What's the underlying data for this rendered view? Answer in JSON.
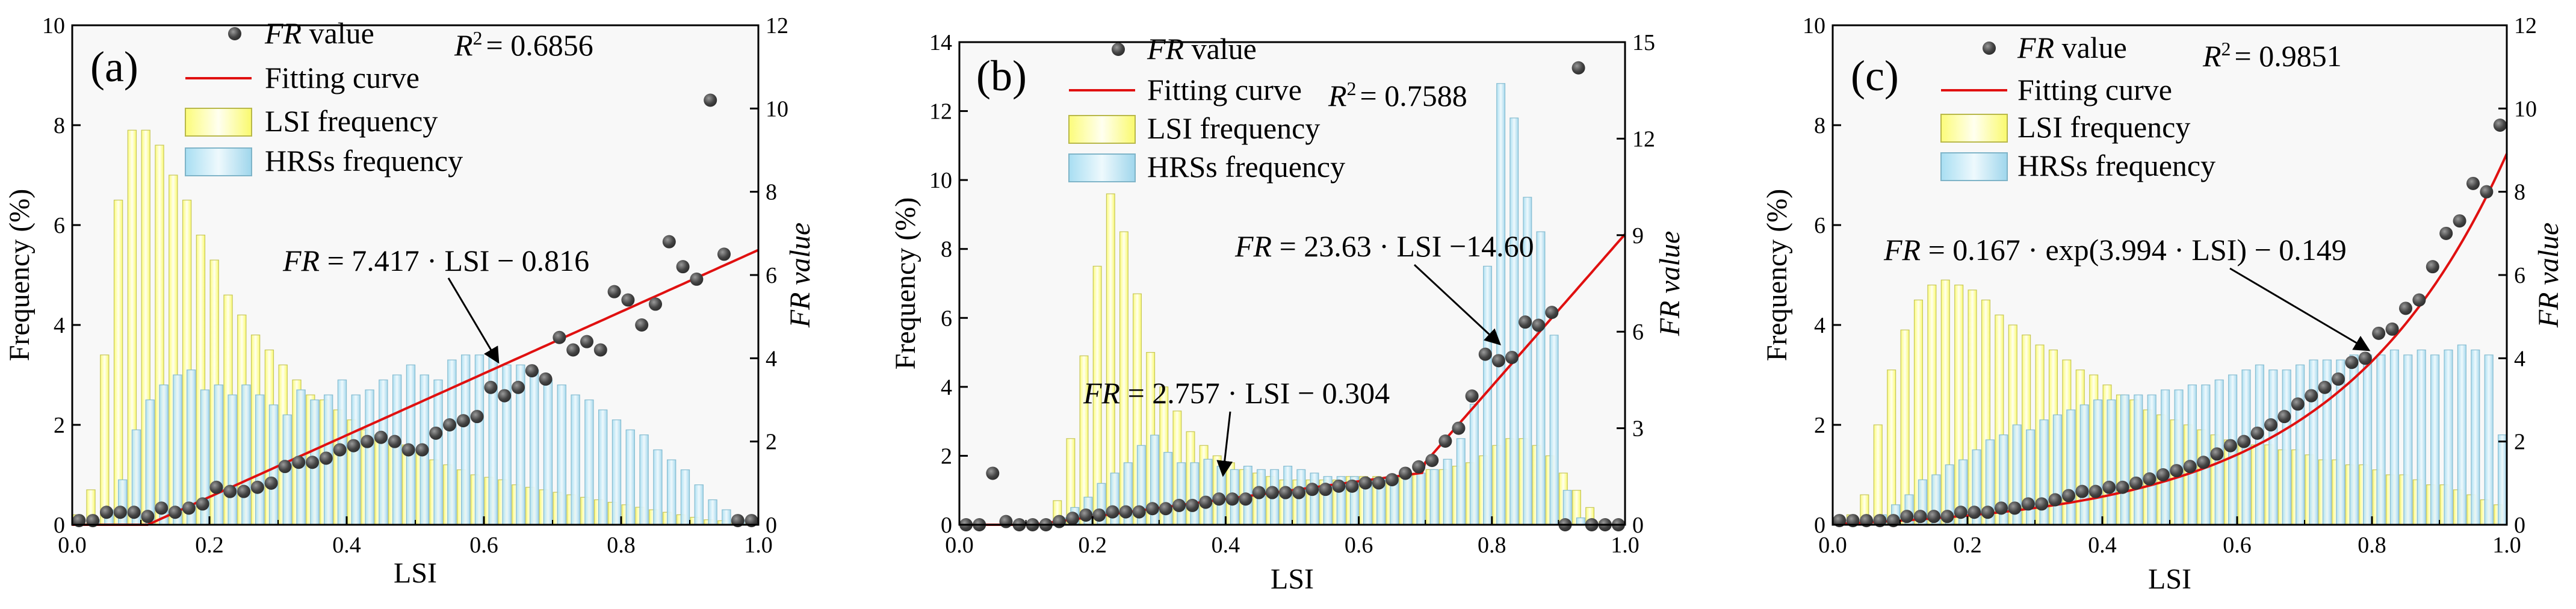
{
  "chart_data": [
    {
      "panel": "(a)",
      "type": "bar",
      "xlabel": "LSI",
      "ylabel_left": "Frequency (%)",
      "ylabel_right": "FR value",
      "xlim": [
        0.0,
        1.0
      ],
      "ylim_left": [
        0,
        10
      ],
      "ylim_right": [
        0,
        12
      ],
      "xticks": [
        "0.0",
        "0.2",
        "0.4",
        "0.6",
        "0.8",
        "1.0"
      ],
      "yticks_left": [
        "0",
        "2",
        "4",
        "6",
        "8",
        "10"
      ],
      "yticks_right": [
        "0",
        "2",
        "4",
        "6",
        "8",
        "10",
        "12"
      ],
      "legend": {
        "fr": "value",
        "fit": "Fitting curve",
        "lsi": "LSI frequency",
        "hrs": "HRSs frequency"
      },
      "r2": "= 0.6856",
      "equation": "= 7.417 · LSI − 0.816",
      "fit": {
        "kind": "linear",
        "a": 7.417,
        "b": -0.816
      },
      "lsi_frequency": [
        0.2,
        0.7,
        3.4,
        6.5,
        7.9,
        7.9,
        7.6,
        7.0,
        6.5,
        5.8,
        5.3,
        4.6,
        4.2,
        3.8,
        3.5,
        3.2,
        2.9,
        2.6,
        2.5,
        2.3,
        2.1,
        1.9,
        1.8,
        1.7,
        1.6,
        1.5,
        1.3,
        1.2,
        1.1,
        1.0,
        0.95,
        0.9,
        0.8,
        0.75,
        0.7,
        0.65,
        0.6,
        0.55,
        0.5,
        0.45,
        0.4,
        0.35,
        0.3,
        0.25,
        0.2,
        0.15,
        0.1,
        0.08,
        0.05,
        0.02
      ],
      "hrs_frequency": [
        0.02,
        0.1,
        0.3,
        0.9,
        1.9,
        2.5,
        2.8,
        3.0,
        3.1,
        2.7,
        2.8,
        2.6,
        2.8,
        2.6,
        2.4,
        2.2,
        2.7,
        2.5,
        2.6,
        2.9,
        2.6,
        2.7,
        2.9,
        3.0,
        3.2,
        3.0,
        2.9,
        3.3,
        3.4,
        3.4,
        3.4,
        3.2,
        3.2,
        3.1,
        2.9,
        2.8,
        2.6,
        2.5,
        2.3,
        2.1,
        1.9,
        1.8,
        1.5,
        1.3,
        1.1,
        0.8,
        0.5,
        0.3,
        0.1,
        0.0
      ],
      "fr_points": [
        [
          0.01,
          0.1
        ],
        [
          0.03,
          0.1
        ],
        [
          0.05,
          0.3
        ],
        [
          0.07,
          0.3
        ],
        [
          0.09,
          0.3
        ],
        [
          0.11,
          0.2
        ],
        [
          0.13,
          0.4
        ],
        [
          0.15,
          0.3
        ],
        [
          0.17,
          0.4
        ],
        [
          0.19,
          0.5
        ],
        [
          0.21,
          0.9
        ],
        [
          0.23,
          0.8
        ],
        [
          0.25,
          0.8
        ],
        [
          0.27,
          0.9
        ],
        [
          0.29,
          1.0
        ],
        [
          0.31,
          1.4
        ],
        [
          0.33,
          1.5
        ],
        [
          0.35,
          1.5
        ],
        [
          0.37,
          1.6
        ],
        [
          0.39,
          1.8
        ],
        [
          0.41,
          1.9
        ],
        [
          0.43,
          2.0
        ],
        [
          0.45,
          2.1
        ],
        [
          0.47,
          2.0
        ],
        [
          0.49,
          1.8
        ],
        [
          0.51,
          1.8
        ],
        [
          0.53,
          2.2
        ],
        [
          0.55,
          2.4
        ],
        [
          0.57,
          2.5
        ],
        [
          0.59,
          2.6
        ],
        [
          0.61,
          3.3
        ],
        [
          0.63,
          3.1
        ],
        [
          0.65,
          3.3
        ],
        [
          0.67,
          3.7
        ],
        [
          0.69,
          3.5
        ],
        [
          0.71,
          4.5
        ],
        [
          0.73,
          4.2
        ],
        [
          0.75,
          4.4
        ],
        [
          0.77,
          4.2
        ],
        [
          0.79,
          5.6
        ],
        [
          0.81,
          5.4
        ],
        [
          0.83,
          4.8
        ],
        [
          0.85,
          5.3
        ],
        [
          0.87,
          6.8
        ],
        [
          0.89,
          6.2
        ],
        [
          0.91,
          5.9
        ],
        [
          0.93,
          10.2
        ],
        [
          0.95,
          6.5
        ],
        [
          0.97,
          0.1
        ],
        [
          0.99,
          0.1
        ]
      ]
    },
    {
      "panel": "(b)",
      "type": "bar",
      "xlabel": "LSI",
      "ylabel_left": "Frequency (%)",
      "ylabel_right": "FR value",
      "xlim": [
        0.0,
        1.0
      ],
      "ylim_left": [
        0,
        14
      ],
      "ylim_right": [
        0,
        15
      ],
      "xticks": [
        "0.0",
        "0.2",
        "0.4",
        "0.6",
        "0.8",
        "1.0"
      ],
      "yticks_left": [
        "0",
        "2",
        "4",
        "6",
        "8",
        "10",
        "12",
        "14"
      ],
      "yticks_right": [
        "0",
        "3",
        "6",
        "9",
        "12",
        "15"
      ],
      "legend": {
        "fr": "value",
        "fit": "Fitting curve",
        "lsi": "LSI frequency",
        "hrs": "HRSs frequency"
      },
      "r2": "= 0.7588",
      "equation": "= 23.63 · LSI −14.60",
      "equation2": "= 2.757 · LSI − 0.304",
      "fit": {
        "kind": "piecewise",
        "a1": 2.757,
        "b1": -0.304,
        "a2": 23.63,
        "b2": -14.6
      },
      "lsi_frequency": [
        0,
        0,
        0,
        0,
        0,
        0,
        0,
        0.7,
        2.5,
        4.9,
        7.5,
        9.6,
        8.5,
        6.7,
        5.0,
        4.0,
        3.3,
        2.7,
        2.3,
        2.0,
        1.8,
        1.6,
        1.5,
        1.4,
        1.3,
        1.3,
        1.3,
        1.3,
        1.3,
        1.4,
        1.4,
        1.4,
        1.4,
        1.4,
        1.5,
        1.6,
        1.6,
        1.7,
        1.8,
        2.0,
        2.3,
        2.5,
        2.5,
        2.3,
        2.0,
        1.5,
        1.0,
        0.5,
        0.1,
        0
      ],
      "hrs_frequency": [
        0,
        0,
        0,
        0,
        0,
        0,
        0,
        0.2,
        0.5,
        0.8,
        1.2,
        1.5,
        1.8,
        2.3,
        2.6,
        2.1,
        1.8,
        1.8,
        1.9,
        1.7,
        1.6,
        1.7,
        1.6,
        1.6,
        1.7,
        1.6,
        1.5,
        1.4,
        1.4,
        1.4,
        1.3,
        1.3,
        1.4,
        1.5,
        1.5,
        1.6,
        1.9,
        2.5,
        3.5,
        7.5,
        12.8,
        11.8,
        9.5,
        8.5,
        5.5,
        1.0,
        0.2,
        0,
        0,
        0
      ],
      "fr_points": [
        [
          0.01,
          0.0
        ],
        [
          0.03,
          0.0
        ],
        [
          0.05,
          1.6
        ],
        [
          0.07,
          0.1
        ],
        [
          0.09,
          0.0
        ],
        [
          0.11,
          0.0
        ],
        [
          0.13,
          0.0
        ],
        [
          0.15,
          0.1
        ],
        [
          0.17,
          0.2
        ],
        [
          0.19,
          0.3
        ],
        [
          0.21,
          0.3
        ],
        [
          0.23,
          0.4
        ],
        [
          0.25,
          0.4
        ],
        [
          0.27,
          0.4
        ],
        [
          0.29,
          0.5
        ],
        [
          0.31,
          0.5
        ],
        [
          0.33,
          0.6
        ],
        [
          0.35,
          0.6
        ],
        [
          0.37,
          0.7
        ],
        [
          0.39,
          0.8
        ],
        [
          0.41,
          0.8
        ],
        [
          0.43,
          0.8
        ],
        [
          0.45,
          1.0
        ],
        [
          0.47,
          1.0
        ],
        [
          0.49,
          1.0
        ],
        [
          0.51,
          1.0
        ],
        [
          0.53,
          1.1
        ],
        [
          0.55,
          1.1
        ],
        [
          0.57,
          1.2
        ],
        [
          0.59,
          1.2
        ],
        [
          0.61,
          1.3
        ],
        [
          0.63,
          1.3
        ],
        [
          0.65,
          1.4
        ],
        [
          0.67,
          1.6
        ],
        [
          0.69,
          1.8
        ],
        [
          0.71,
          2.0
        ],
        [
          0.73,
          2.6
        ],
        [
          0.75,
          3.0
        ],
        [
          0.77,
          4.0
        ],
        [
          0.79,
          5.3
        ],
        [
          0.81,
          5.1
        ],
        [
          0.83,
          5.2
        ],
        [
          0.85,
          6.3
        ],
        [
          0.87,
          6.2
        ],
        [
          0.89,
          6.6
        ],
        [
          0.91,
          0.0
        ],
        [
          0.93,
          14.2
        ],
        [
          0.95,
          0.0
        ],
        [
          0.97,
          0.0
        ],
        [
          0.99,
          0.0
        ]
      ]
    },
    {
      "panel": "(c)",
      "type": "bar",
      "xlabel": "LSI",
      "ylabel_left": "Frequency (%)",
      "ylabel_right": "FR value",
      "xlim": [
        0.0,
        1.0
      ],
      "ylim_left": [
        0,
        10
      ],
      "ylim_right": [
        0,
        12
      ],
      "xticks": [
        "0.0",
        "0.2",
        "0.4",
        "0.6",
        "0.8",
        "1.0"
      ],
      "yticks_left": [
        "0",
        "2",
        "4",
        "6",
        "8",
        "10"
      ],
      "yticks_right": [
        "0",
        "2",
        "4",
        "6",
        "8",
        "10",
        "12"
      ],
      "legend": {
        "fr": "value",
        "fit": "Fitting curve",
        "lsi": "LSI frequency",
        "hrs": "HRSs frequency"
      },
      "r2": "= 0.9851",
      "equation": "= 0.167 · exp(3.994 · LSI) − 0.149",
      "fit": {
        "kind": "exp",
        "a": 0.167,
        "k": 3.994,
        "b": -0.149
      },
      "lsi_frequency": [
        0.05,
        0.2,
        0.6,
        2.0,
        3.1,
        3.9,
        4.5,
        4.8,
        4.9,
        4.8,
        4.7,
        4.5,
        4.2,
        4.0,
        3.8,
        3.6,
        3.5,
        3.3,
        3.1,
        3.0,
        2.8,
        2.6,
        2.5,
        2.3,
        2.2,
        2.1,
        2.0,
        1.9,
        1.8,
        1.7,
        1.7,
        1.6,
        1.6,
        1.5,
        1.5,
        1.4,
        1.3,
        1.3,
        1.2,
        1.2,
        1.1,
        1.0,
        1.0,
        0.9,
        0.8,
        0.8,
        0.7,
        0.6,
        0.5,
        0.4
      ],
      "hrs_frequency": [
        0,
        0.05,
        0.1,
        0.2,
        0.4,
        0.6,
        0.9,
        1.0,
        1.2,
        1.3,
        1.5,
        1.7,
        1.8,
        2.0,
        1.9,
        2.1,
        2.2,
        2.3,
        2.4,
        2.5,
        2.5,
        2.6,
        2.6,
        2.6,
        2.7,
        2.7,
        2.8,
        2.8,
        2.9,
        3.0,
        3.1,
        3.2,
        3.1,
        3.1,
        3.2,
        3.3,
        3.3,
        3.3,
        3.4,
        3.4,
        3.4,
        3.5,
        3.4,
        3.5,
        3.4,
        3.5,
        3.6,
        3.5,
        3.4,
        1.8
      ],
      "fr_points": [
        [
          0.01,
          0.1
        ],
        [
          0.03,
          0.1
        ],
        [
          0.05,
          0.1
        ],
        [
          0.07,
          0.1
        ],
        [
          0.09,
          0.1
        ],
        [
          0.11,
          0.2
        ],
        [
          0.13,
          0.2
        ],
        [
          0.15,
          0.2
        ],
        [
          0.17,
          0.2
        ],
        [
          0.19,
          0.3
        ],
        [
          0.21,
          0.3
        ],
        [
          0.23,
          0.3
        ],
        [
          0.25,
          0.4
        ],
        [
          0.27,
          0.4
        ],
        [
          0.29,
          0.5
        ],
        [
          0.31,
          0.5
        ],
        [
          0.33,
          0.6
        ],
        [
          0.35,
          0.7
        ],
        [
          0.37,
          0.8
        ],
        [
          0.39,
          0.8
        ],
        [
          0.41,
          0.9
        ],
        [
          0.43,
          0.9
        ],
        [
          0.45,
          1.0
        ],
        [
          0.47,
          1.1
        ],
        [
          0.49,
          1.2
        ],
        [
          0.51,
          1.3
        ],
        [
          0.53,
          1.4
        ],
        [
          0.55,
          1.5
        ],
        [
          0.57,
          1.7
        ],
        [
          0.59,
          1.9
        ],
        [
          0.61,
          2.0
        ],
        [
          0.63,
          2.2
        ],
        [
          0.65,
          2.4
        ],
        [
          0.67,
          2.6
        ],
        [
          0.69,
          2.9
        ],
        [
          0.71,
          3.1
        ],
        [
          0.73,
          3.3
        ],
        [
          0.75,
          3.5
        ],
        [
          0.77,
          3.9
        ],
        [
          0.79,
          4.0
        ],
        [
          0.81,
          4.6
        ],
        [
          0.83,
          4.7
        ],
        [
          0.85,
          5.2
        ],
        [
          0.87,
          5.4
        ],
        [
          0.89,
          6.2
        ],
        [
          0.91,
          7.0
        ],
        [
          0.93,
          7.3
        ],
        [
          0.95,
          8.2
        ],
        [
          0.97,
          8.0
        ],
        [
          0.99,
          9.6
        ]
      ]
    }
  ]
}
